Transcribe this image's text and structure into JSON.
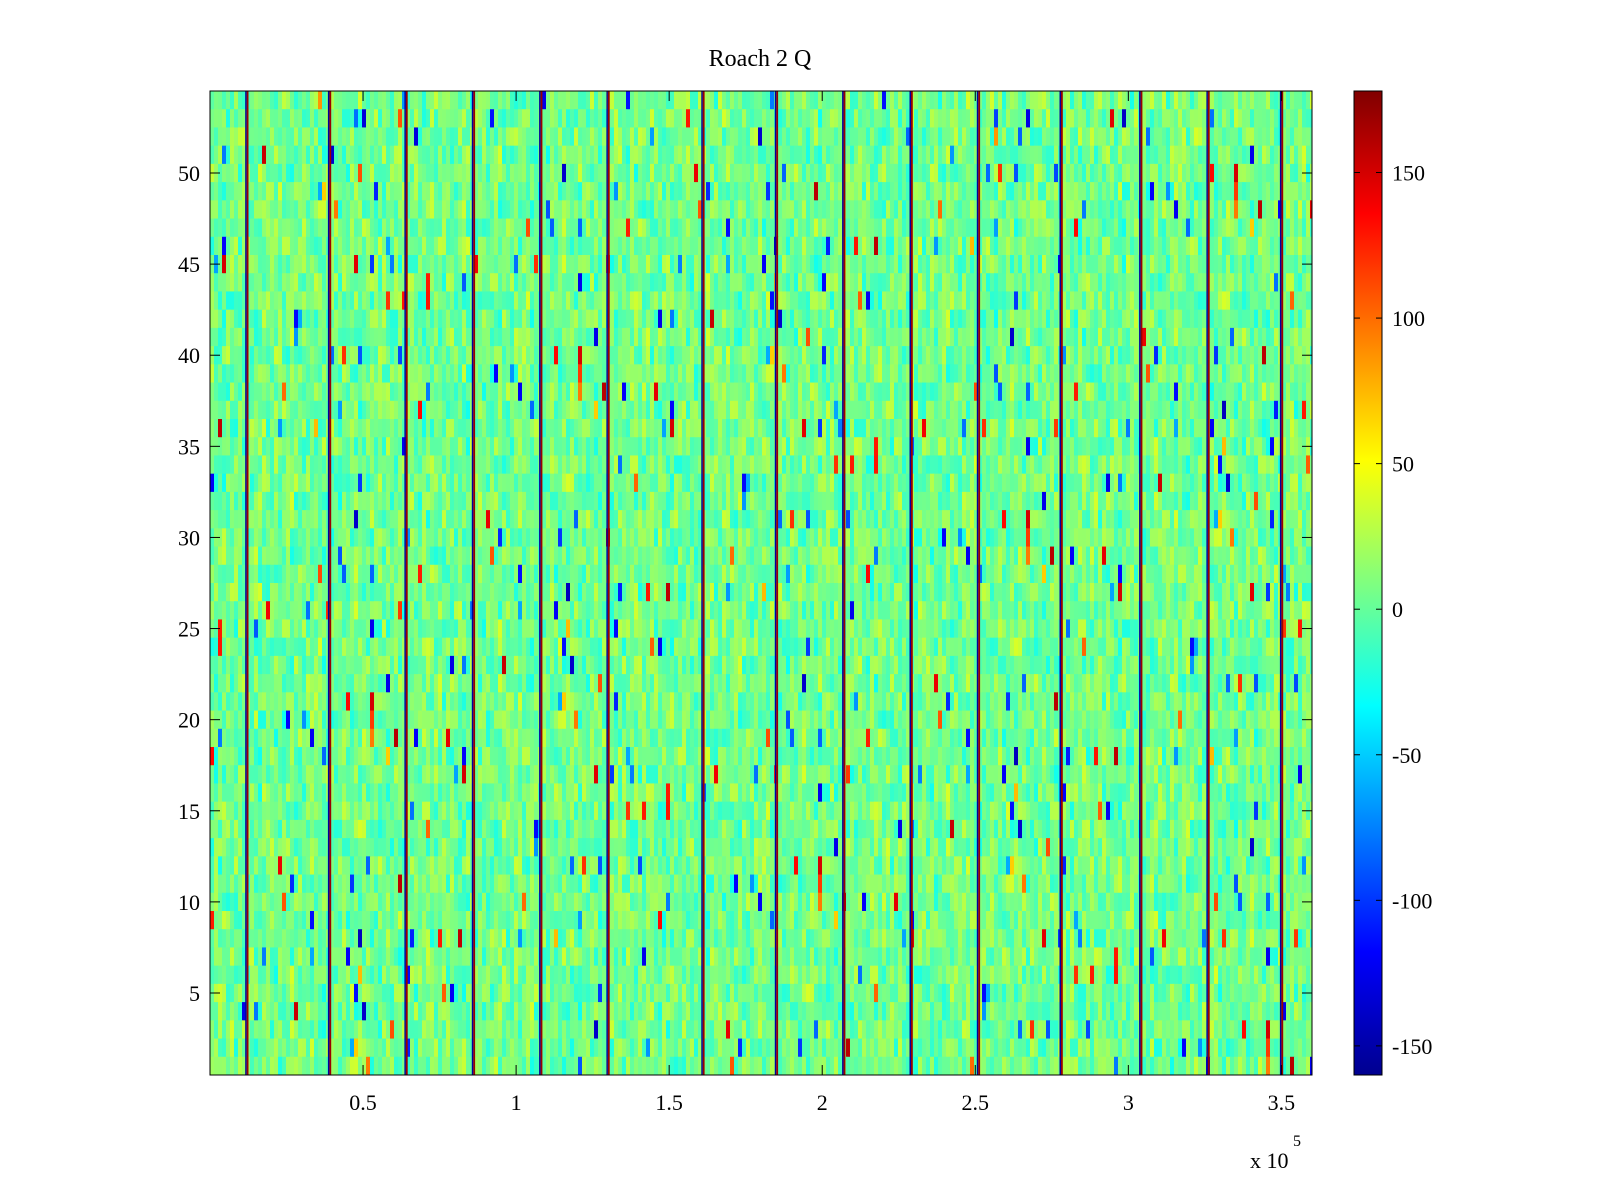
{
  "chart_data": {
    "type": "heatmap",
    "title": "Roach 2 Q",
    "xlabel": "",
    "ylabel": "",
    "x_multiplier_label": "x 10",
    "x_multiplier_exponent": "5",
    "xlim": [
      0,
      360000
    ],
    "ylim": [
      0.5,
      54.5
    ],
    "x_ticks": [
      50000,
      100000,
      150000,
      200000,
      250000,
      300000,
      350000
    ],
    "x_tick_labels": [
      "0.5",
      "1",
      "1.5",
      "2",
      "2.5",
      "3",
      "3.5"
    ],
    "y_ticks": [
      5,
      10,
      15,
      20,
      25,
      30,
      35,
      40,
      45,
      50
    ],
    "y_tick_labels": [
      "5",
      "10",
      "15",
      "20",
      "25",
      "30",
      "35",
      "40",
      "45",
      "50"
    ],
    "rows": 54,
    "colorbar": {
      "colormap": "jet",
      "clim": [
        -160,
        178
      ],
      "ticks": [
        -150,
        -100,
        -50,
        0,
        50,
        100,
        150
      ],
      "tick_labels": [
        "-150",
        "-100",
        "-50",
        "0",
        "50",
        "100",
        "150"
      ]
    },
    "background_value_range": [
      -30,
      40
    ],
    "high_value_vertical_lines_x": [
      12000,
      39000,
      64000,
      86000,
      108000,
      130000,
      161000,
      185000,
      207000,
      229000,
      251000,
      278000,
      304000,
      326000,
      350000
    ],
    "grid": false
  }
}
